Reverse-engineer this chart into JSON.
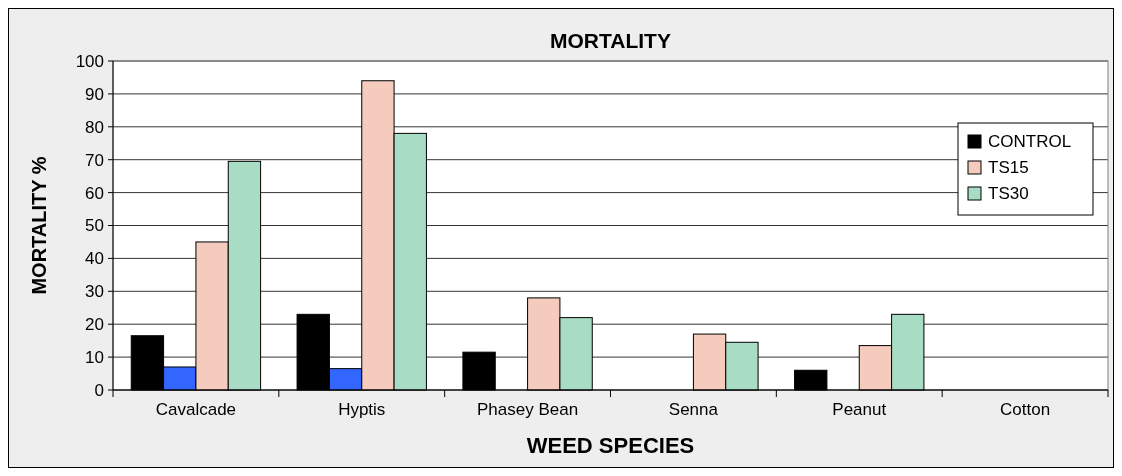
{
  "chart_data": {
    "type": "bar",
    "title": "MORTALITY",
    "xlabel": "WEED SPECIES",
    "ylabel": "MORTALITY %",
    "categories": [
      "Cavalcade",
      "Hyptis",
      "Phasey Bean",
      "Senna",
      "Peanut",
      "Cotton"
    ],
    "series": [
      {
        "name": "CONTROL",
        "color": "#000000",
        "values": [
          16.5,
          23,
          11.5,
          0,
          6,
          0
        ]
      },
      {
        "color": "#3366ff",
        "values": [
          7,
          6.5,
          0,
          0,
          0,
          0
        ]
      },
      {
        "name": "TS15",
        "color": "#f4cbbd",
        "values": [
          45,
          94,
          28,
          17,
          13.5,
          0
        ]
      },
      {
        "name": "TS30",
        "color": "#a9dcc4",
        "values": [
          69.5,
          78,
          22,
          14.5,
          23,
          0
        ]
      }
    ],
    "ylim": [
      0,
      100
    ],
    "yticks": [
      0,
      10,
      20,
      30,
      40,
      50,
      60,
      70,
      80,
      90,
      100
    ],
    "grid": "y",
    "legend": "top right"
  }
}
